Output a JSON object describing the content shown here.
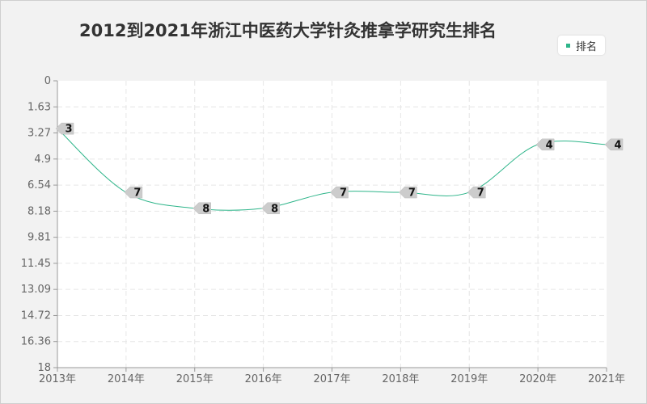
{
  "chart_data": {
    "type": "line",
    "title": "2012到2021年浙江中医药大学针灸推拿学研究生排名",
    "xlabel": "",
    "ylabel": "",
    "categories": [
      "2013年",
      "2014年",
      "2015年",
      "2016年",
      "2017年",
      "2018年",
      "2019年",
      "2020年",
      "2021年"
    ],
    "yticks": [
      "0",
      "1.63",
      "3.27",
      "4.9",
      "6.54",
      "8.18",
      "9.81",
      "11.45",
      "13.09",
      "14.72",
      "16.36",
      "18"
    ],
    "ylim": [
      0,
      18
    ],
    "y_reversed": true,
    "grid": true,
    "legend_position": "top-right",
    "series": [
      {
        "name": "排名",
        "color": "#2eb58a",
        "values": [
          3,
          7,
          8,
          8,
          7,
          7,
          7,
          4,
          4
        ]
      }
    ]
  }
}
